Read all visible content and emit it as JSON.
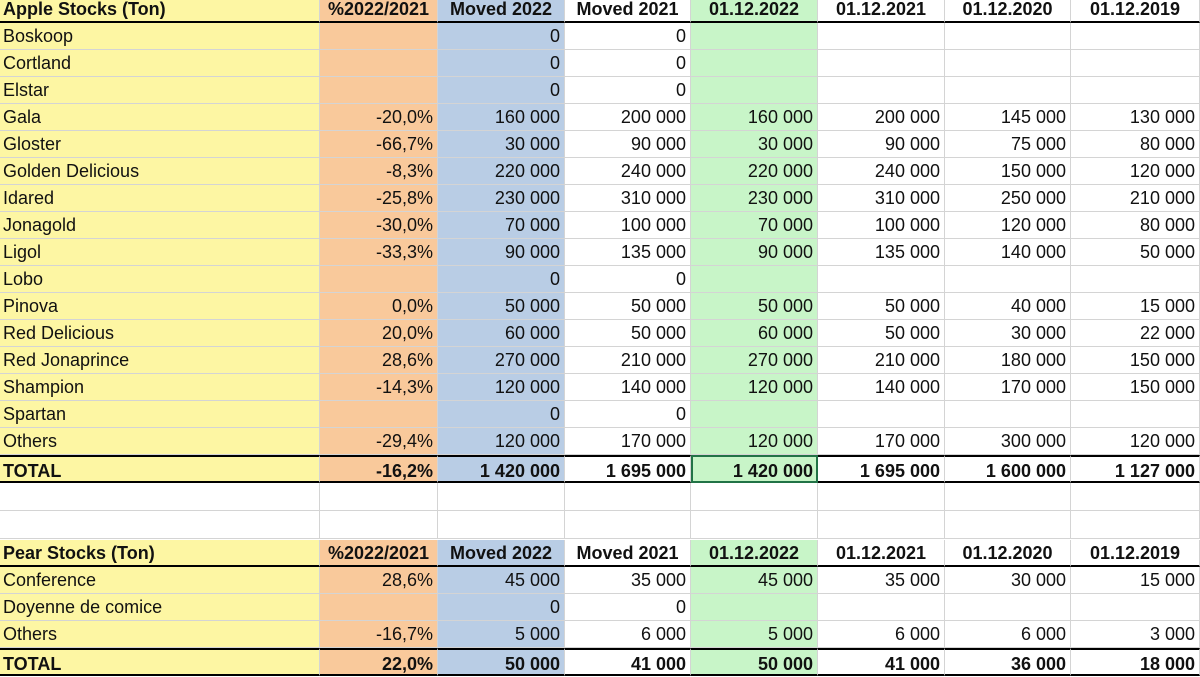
{
  "apple": {
    "header": [
      "Apple Stocks (Ton)",
      "%2022/2021",
      "Moved 2022",
      "Moved 2021",
      "01.12.2022",
      "01.12.2021",
      "01.12.2020",
      "01.12.2019"
    ],
    "rows": [
      [
        "Boskoop",
        null,
        "0",
        "0",
        null,
        null,
        null,
        null
      ],
      [
        "Cortland",
        null,
        "0",
        "0",
        null,
        null,
        null,
        null
      ],
      [
        "Elstar",
        null,
        "0",
        "0",
        null,
        null,
        null,
        null
      ],
      [
        "Gala",
        "-20,0%",
        "160 000",
        "200 000",
        "160 000",
        "200 000",
        "145 000",
        "130 000"
      ],
      [
        "Gloster",
        "-66,7%",
        "30 000",
        "90 000",
        "30 000",
        "90 000",
        "75 000",
        "80 000"
      ],
      [
        "Golden Delicious",
        "-8,3%",
        "220 000",
        "240 000",
        "220 000",
        "240 000",
        "150 000",
        "120 000"
      ],
      [
        "Idared",
        "-25,8%",
        "230 000",
        "310 000",
        "230 000",
        "310 000",
        "250 000",
        "210 000"
      ],
      [
        "Jonagold",
        "-30,0%",
        "70 000",
        "100 000",
        "70 000",
        "100 000",
        "120 000",
        "80 000"
      ],
      [
        "Ligol",
        "-33,3%",
        "90 000",
        "135 000",
        "90 000",
        "135 000",
        "140 000",
        "50 000"
      ],
      [
        "Lobo",
        null,
        "0",
        "0",
        null,
        null,
        null,
        null
      ],
      [
        "Pinova",
        "0,0%",
        "50 000",
        "50 000",
        "50 000",
        "50 000",
        "40 000",
        "15 000"
      ],
      [
        "Red Delicious",
        "20,0%",
        "60 000",
        "50 000",
        "60 000",
        "50 000",
        "30 000",
        "22 000"
      ],
      [
        "Red Jonaprince",
        "28,6%",
        "270 000",
        "210 000",
        "270 000",
        "210 000",
        "180 000",
        "150 000"
      ],
      [
        "Shampion",
        "-14,3%",
        "120 000",
        "140 000",
        "120 000",
        "140 000",
        "170 000",
        "150 000"
      ],
      [
        "Spartan",
        null,
        "0",
        "0",
        null,
        null,
        null,
        null
      ],
      [
        "Others",
        "-29,4%",
        "120 000",
        "170 000",
        "120 000",
        "170 000",
        "300 000",
        "120 000"
      ]
    ],
    "total": [
      "TOTAL",
      "-16,2%",
      "1 420 000",
      "1 695 000",
      "1 420 000",
      "1 695 000",
      "1 600 000",
      "1 127 000"
    ]
  },
  "pear": {
    "header": [
      "Pear Stocks (Ton)",
      "%2022/2021",
      "Moved 2022",
      "Moved 2021",
      "01.12.2022",
      "01.12.2021",
      "01.12.2020",
      "01.12.2019"
    ],
    "rows": [
      [
        "Conference",
        "28,6%",
        "45 000",
        "35 000",
        "45 000",
        "35 000",
        "30 000",
        "15 000"
      ],
      [
        "Doyenne de comice",
        null,
        "0",
        "0",
        null,
        null,
        null,
        null
      ],
      [
        "Others",
        "-16,7%",
        "5 000",
        "6 000",
        "5 000",
        "6 000",
        "6 000",
        "3 000"
      ]
    ],
    "total": [
      "TOTAL",
      "22,0%",
      "50 000",
      "41 000",
      "50 000",
      "41 000",
      "36 000",
      "18 000"
    ]
  }
}
